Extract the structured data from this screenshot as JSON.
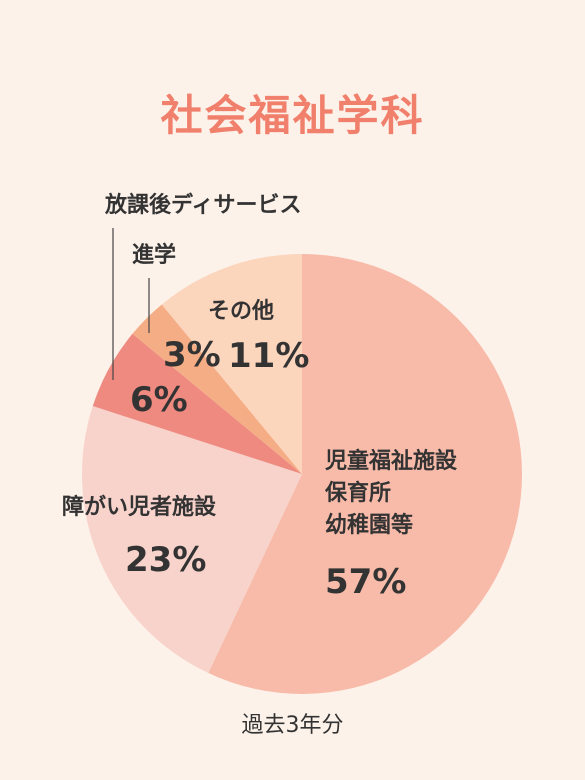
{
  "title": "社会福祉学科",
  "footnote": "過去3年分",
  "colors": {
    "title": "#f0806c",
    "background": "#fdf2ea",
    "slices": [
      "#f8bba9",
      "#f8d3cb",
      "#ee8a80",
      "#f5ad86",
      "#fbd5bc"
    ]
  },
  "chart_data": {
    "type": "pie",
    "title": "社会福祉学科",
    "slices": [
      {
        "label_lines": [
          "児童福祉施設",
          "保育所",
          "幼稚園等"
        ],
        "value": 57,
        "value_label": "57%"
      },
      {
        "label_lines": [
          "障がい児者施設"
        ],
        "value": 23,
        "value_label": "23%"
      },
      {
        "label_lines": [
          "放課後ディサービス"
        ],
        "value": 6,
        "value_label": "6%"
      },
      {
        "label_lines": [
          "進学"
        ],
        "value": 3,
        "value_label": "3%"
      },
      {
        "label_lines": [
          "その他"
        ],
        "value": 11,
        "value_label": "11%"
      }
    ]
  }
}
